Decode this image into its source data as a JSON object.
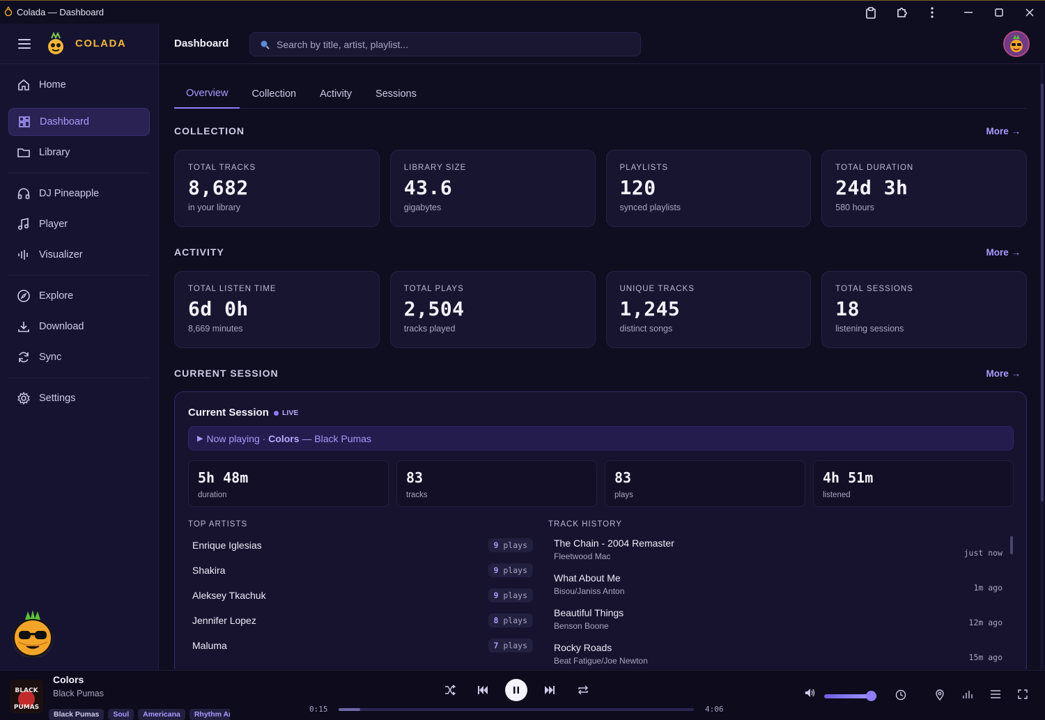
{
  "window": {
    "title": "Colada — Dashboard"
  },
  "brand": {
    "name": "COLADA"
  },
  "sidebar": {
    "items": [
      {
        "label": "Home",
        "icon": "home-icon"
      },
      {
        "label": "Dashboard",
        "icon": "dashboard-icon",
        "active": true
      },
      {
        "label": "Library",
        "icon": "folder-icon"
      },
      {
        "label": "DJ Pineapple",
        "icon": "headphones-icon"
      },
      {
        "label": "Player",
        "icon": "music-note-icon"
      },
      {
        "label": "Visualizer",
        "icon": "equalizer-icon"
      },
      {
        "label": "Explore",
        "icon": "compass-icon"
      },
      {
        "label": "Download",
        "icon": "download-icon"
      },
      {
        "label": "Sync",
        "icon": "sync-icon"
      },
      {
        "label": "Settings",
        "icon": "gear-icon"
      }
    ]
  },
  "header": {
    "title": "Dashboard",
    "search_placeholder": "Search by title, artist, playlist..."
  },
  "tabs": [
    {
      "label": "Overview",
      "active": true
    },
    {
      "label": "Collection"
    },
    {
      "label": "Activity"
    },
    {
      "label": "Sessions"
    }
  ],
  "more_label": "More →",
  "collection": {
    "heading": "COLLECTION",
    "cards": [
      {
        "label": "TOTAL TRACKS",
        "value": "8,682",
        "sub": "in your library"
      },
      {
        "label": "LIBRARY SIZE",
        "value": "43.6",
        "sub": "gigabytes"
      },
      {
        "label": "PLAYLISTS",
        "value": "120",
        "sub": "synced playlists"
      },
      {
        "label": "TOTAL DURATION",
        "value": "24d 3h",
        "sub": "580 hours"
      }
    ]
  },
  "activity": {
    "heading": "ACTIVITY",
    "cards": [
      {
        "label": "TOTAL LISTEN TIME",
        "value": "6d 0h",
        "sub": "8,669 minutes"
      },
      {
        "label": "TOTAL PLAYS",
        "value": "2,504",
        "sub": "tracks played"
      },
      {
        "label": "UNIQUE TRACKS",
        "value": "1,245",
        "sub": "distinct songs"
      },
      {
        "label": "TOTAL SESSIONS",
        "value": "18",
        "sub": "listening sessions"
      }
    ]
  },
  "current_session": {
    "heading": "CURRENT SESSION",
    "title": "Current Session",
    "live": "LIVE",
    "now_playing_prefix": "Now playing · ",
    "now_playing_track": "Colors",
    "now_playing_sep": " — ",
    "now_playing_artist": "Black Pumas",
    "stats": [
      {
        "value": "5h 48m",
        "label": "duration"
      },
      {
        "value": "83",
        "label": "tracks"
      },
      {
        "value": "83",
        "label": "plays"
      },
      {
        "value": "4h 51m",
        "label": "listened"
      }
    ],
    "top_artists_heading": "TOP ARTISTS",
    "top_artists": [
      {
        "name": "Enrique Iglesias",
        "count": "9",
        "unit": " plays"
      },
      {
        "name": "Shakira",
        "count": "9",
        "unit": " plays"
      },
      {
        "name": "Aleksey Tkachuk",
        "count": "9",
        "unit": " plays"
      },
      {
        "name": "Jennifer Lopez",
        "count": "8",
        "unit": " plays"
      },
      {
        "name": "Maluma",
        "count": "7",
        "unit": " plays"
      }
    ],
    "track_history_heading": "TRACK HISTORY",
    "track_history": [
      {
        "title": "The Chain - 2004 Remaster",
        "artist": "Fleetwood Mac",
        "ago": "just now"
      },
      {
        "title": "What About Me",
        "artist": "Bisou/Janiss Anton",
        "ago": "1m ago"
      },
      {
        "title": "Beautiful Things",
        "artist": "Benson Boone",
        "ago": "12m ago"
      },
      {
        "title": "Rocky Roads",
        "artist": "Beat Fatigue/Joe Newton",
        "ago": "15m ago"
      }
    ]
  },
  "player": {
    "title": "Colors",
    "artist": "Black Pumas",
    "tags": [
      "Black Pumas",
      "Soul",
      "Americana",
      "Rhythm An"
    ],
    "current_time": "0:15",
    "total_time": "4:06",
    "progress": 0.06,
    "volume": 0.88,
    "cover_text": "BLACK PUMAS"
  },
  "colors": {
    "accent": "#8f7cff",
    "brand": "#f2b73a",
    "background": "#0f0d20"
  }
}
